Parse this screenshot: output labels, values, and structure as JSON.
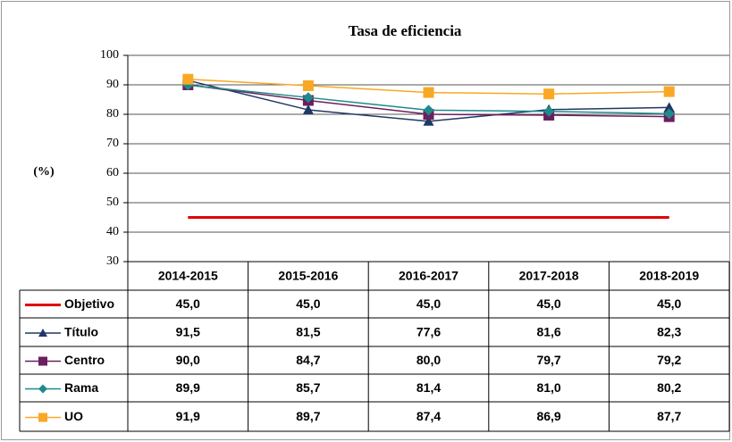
{
  "chart_data": {
    "type": "line",
    "title": "Tasa de eficiencia",
    "y_label": "(%)",
    "categories": [
      "2014-2015",
      "2015-2016",
      "2016-2017",
      "2017-2018",
      "2018-2019"
    ],
    "ylim": [
      30,
      100
    ],
    "yticks": [
      30,
      40,
      50,
      60,
      70,
      80,
      90,
      100
    ],
    "grid": true,
    "series": [
      {
        "name": "Objetivo",
        "color": "#e00000",
        "values": [
          45,
          45,
          45,
          45,
          45
        ],
        "value_labels": [
          "45,0",
          "45,0",
          "45,0",
          "45,0",
          "45,0"
        ]
      },
      {
        "name": "Título",
        "color": "#1f3864",
        "marker": "triangle",
        "values": [
          91.5,
          81.5,
          77.6,
          81.6,
          82.3
        ],
        "value_labels": [
          "91,5",
          "81,5",
          "77,6",
          "81,6",
          "82,3"
        ]
      },
      {
        "name": "Centro",
        "color": "#6b1f5f",
        "marker": "square",
        "values": [
          90.0,
          84.7,
          80.0,
          79.7,
          79.2
        ],
        "value_labels": [
          "90,0",
          "84,7",
          "80,0",
          "79,7",
          "79,2"
        ]
      },
      {
        "name": "Rama",
        "color": "#1f8a8a",
        "marker": "diamond",
        "values": [
          89.9,
          85.7,
          81.4,
          81.0,
          80.2
        ],
        "value_labels": [
          "89,9",
          "85,7",
          "81,4",
          "81,0",
          "80,2"
        ]
      },
      {
        "name": "UO",
        "color": "#f9a825",
        "marker": "square",
        "values": [
          91.9,
          89.7,
          87.4,
          86.9,
          87.7
        ],
        "value_labels": [
          "91,9",
          "89,7",
          "87,4",
          "86,9",
          "87,7"
        ]
      }
    ]
  }
}
